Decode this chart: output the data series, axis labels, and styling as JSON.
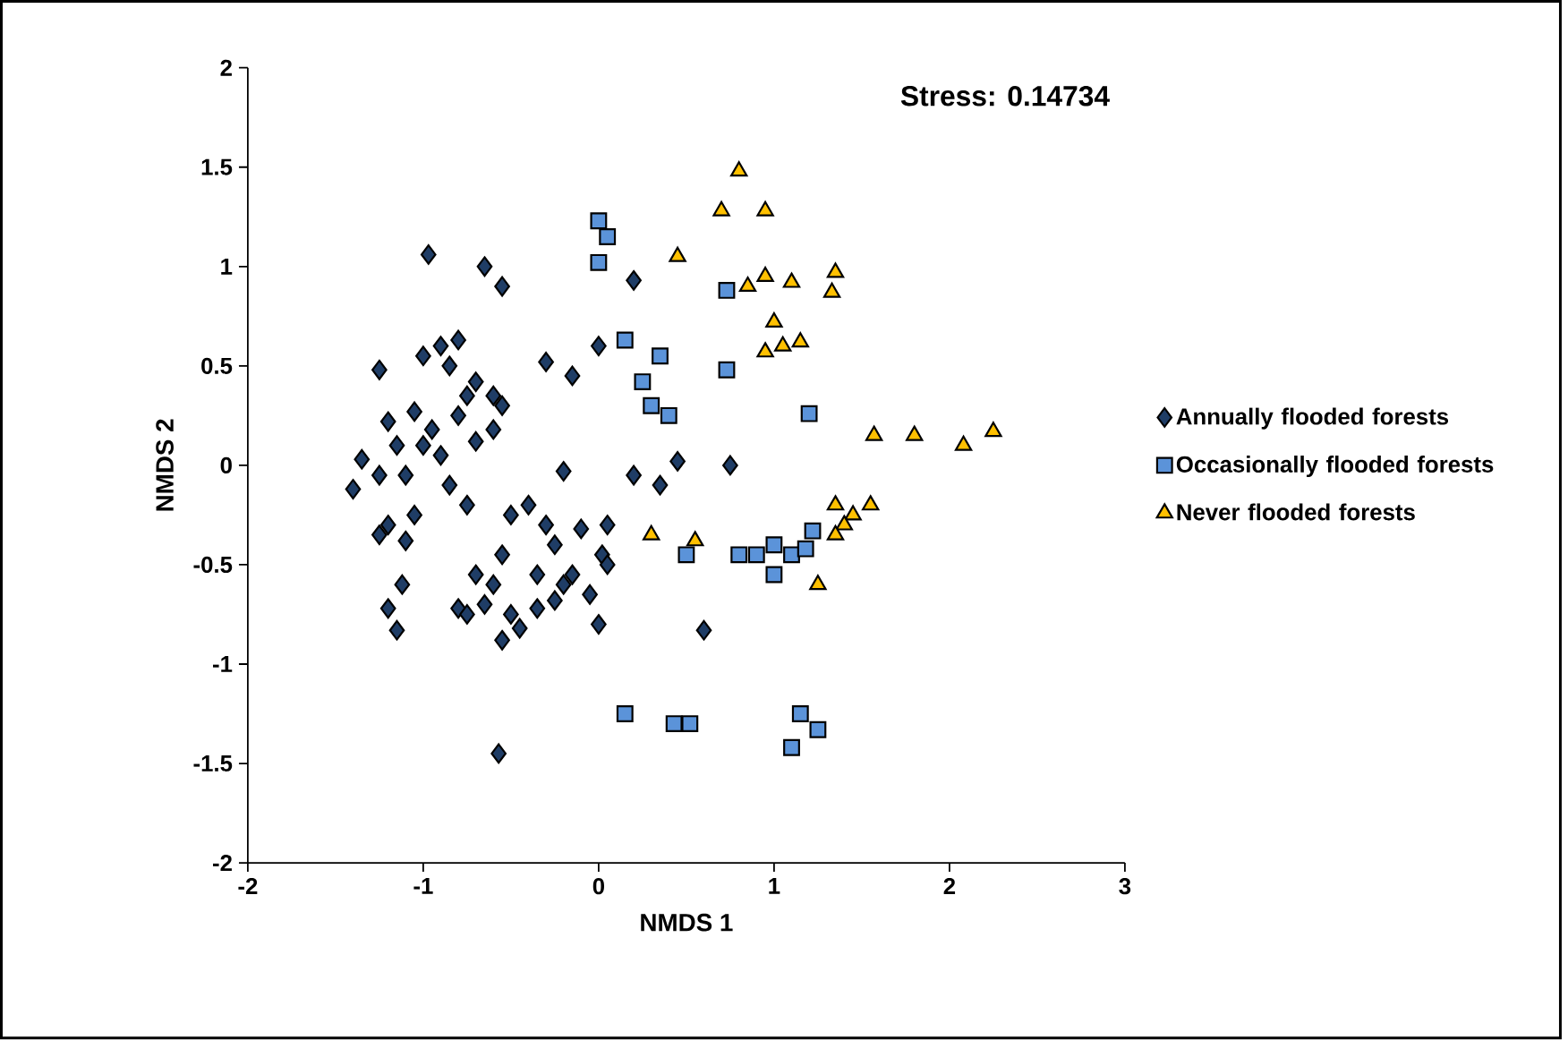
{
  "chart_data": {
    "type": "scatter",
    "xlabel": "NMDS 1",
    "ylabel": "NMDS 2",
    "xlim": [
      -2,
      3
    ],
    "xticks": [
      -2,
      -1,
      0,
      1,
      2,
      3
    ],
    "ylim": [
      -2,
      2
    ],
    "yticks": [
      -2,
      -1.5,
      -1,
      -0.5,
      0,
      0.5,
      1,
      1.5,
      2
    ],
    "grid": false,
    "legend": "right",
    "annotations": [
      "Stress: 0.14734"
    ],
    "series": [
      {
        "name": "Annually flooded forests",
        "color": "#1f3d66",
        "marker": "diamond",
        "x": [
          -0.97,
          -0.65,
          -0.55,
          0.2,
          -1.25,
          -1.0,
          -0.9,
          -0.8,
          -0.85,
          -0.7,
          -0.6,
          -0.3,
          -0.15,
          0.0,
          -1.2,
          -1.05,
          -0.95,
          -0.8,
          -0.7,
          -0.6,
          -0.9,
          -1.15,
          -0.55,
          -0.75,
          -1.4,
          -1.35,
          -1.25,
          -1.1,
          -1.0,
          -0.85,
          -0.75,
          -0.2,
          0.2,
          0.45,
          0.75,
          0.35,
          -1.25,
          -1.2,
          -1.1,
          -1.05,
          -0.5,
          -0.4,
          -0.3,
          -0.1,
          0.05,
          -0.55,
          -0.25,
          0.02,
          -0.7,
          -0.6,
          -0.35,
          -0.15,
          -0.05,
          -0.2,
          0.05,
          -1.12,
          -1.2,
          -1.15,
          -0.8,
          -0.75,
          -0.65,
          -0.5,
          -0.45,
          -0.35,
          -0.25,
          -0.55,
          0.0,
          0.6,
          -0.57
        ],
        "values": [
          1.06,
          1.0,
          0.9,
          0.93,
          0.48,
          0.55,
          0.6,
          0.63,
          0.5,
          0.42,
          0.35,
          0.52,
          0.45,
          0.6,
          0.22,
          0.27,
          0.18,
          0.25,
          0.12,
          0.18,
          0.05,
          0.1,
          0.3,
          0.35,
          -0.12,
          0.03,
          -0.05,
          -0.05,
          0.1,
          -0.1,
          -0.2,
          -0.03,
          -0.05,
          0.02,
          0.0,
          -0.1,
          -0.35,
          -0.3,
          -0.38,
          -0.25,
          -0.25,
          -0.2,
          -0.3,
          -0.32,
          -0.3,
          -0.45,
          -0.4,
          -0.45,
          -0.55,
          -0.6,
          -0.55,
          -0.55,
          -0.65,
          -0.6,
          -0.5,
          -0.6,
          -0.72,
          -0.83,
          -0.72,
          -0.75,
          -0.7,
          -0.75,
          -0.82,
          -0.72,
          -0.68,
          -0.88,
          -0.8,
          -0.83,
          -1.45
        ]
      },
      {
        "name": "Occasionally flooded forests",
        "color": "#5b93d9",
        "marker": "square",
        "x": [
          0.0,
          0.05,
          0.0,
          0.73,
          0.15,
          0.35,
          0.25,
          0.3,
          0.4,
          0.73,
          1.2,
          0.5,
          0.8,
          0.9,
          1.0,
          1.1,
          1.0,
          1.18,
          1.22,
          0.15,
          0.43,
          0.52,
          1.15,
          1.25,
          1.1
        ],
        "values": [
          1.23,
          1.15,
          1.02,
          0.88,
          0.63,
          0.55,
          0.42,
          0.3,
          0.25,
          0.48,
          0.26,
          -0.45,
          -0.45,
          -0.45,
          -0.4,
          -0.45,
          -0.55,
          -0.42,
          -0.33,
          -1.25,
          -1.3,
          -1.3,
          -1.25,
          -1.33,
          -1.42
        ]
      },
      {
        "name": "Never flooded forests",
        "color": "#ffc000",
        "marker": "triangle",
        "x": [
          0.8,
          0.7,
          0.95,
          0.45,
          0.85,
          0.95,
          1.1,
          1.35,
          1.33,
          1.0,
          1.05,
          0.95,
          1.15,
          1.57,
          1.8,
          2.08,
          2.25,
          1.35,
          1.45,
          1.55,
          1.4,
          1.35,
          0.3,
          0.55,
          1.25
        ],
        "values": [
          1.48,
          1.28,
          1.28,
          1.05,
          0.9,
          0.95,
          0.92,
          0.97,
          0.87,
          0.72,
          0.6,
          0.57,
          0.62,
          0.15,
          0.15,
          0.1,
          0.17,
          -0.2,
          -0.25,
          -0.2,
          -0.3,
          -0.35,
          -0.35,
          -0.38,
          -0.6
        ]
      }
    ]
  }
}
